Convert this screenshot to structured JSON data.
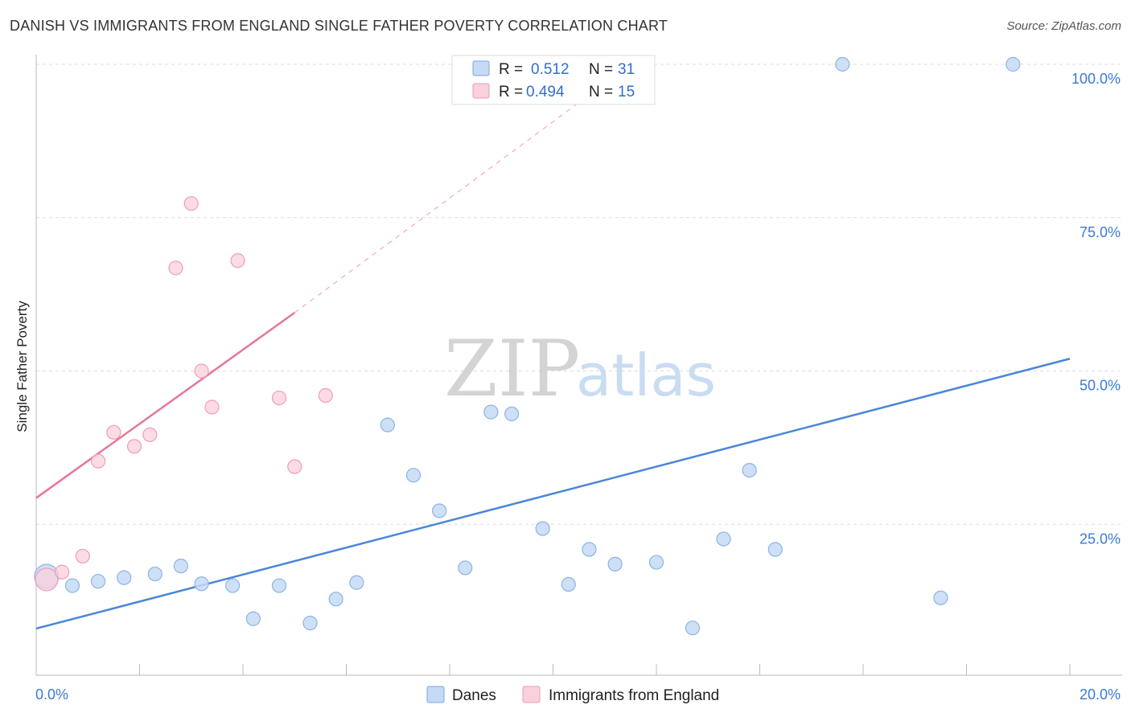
{
  "title": "DANISH VS IMMIGRANTS FROM ENGLAND SINGLE FATHER POVERTY CORRELATION CHART",
  "source": "Source: ZipAtlas.com",
  "watermark": {
    "zip": "ZIP",
    "atlas": "atlas"
  },
  "legend_top": {
    "rows": [
      {
        "r_label": "R =",
        "r_value": "0.512",
        "n_label": "N =",
        "n_value": "31",
        "color": "#a8c8f0"
      },
      {
        "r_label": "R =",
        "r_value": "0.494",
        "n_label": "N =",
        "n_value": "15",
        "color": "#f7b6c8"
      }
    ]
  },
  "legend_bottom": [
    {
      "label": "Danes",
      "color": "#a8c8f0"
    },
    {
      "label": "Immigrants from England",
      "color": "#f7b6c8"
    }
  ],
  "chart_data": {
    "type": "scatter",
    "title": "DANISH VS IMMIGRANTS FROM ENGLAND SINGLE FATHER POVERTY CORRELATION CHART",
    "xlabel": "",
    "ylabel": "Single Father Poverty",
    "xlim": [
      0,
      20
    ],
    "ylim": [
      0,
      100
    ],
    "x_tick_labels": [
      "0.0%",
      "20.0%"
    ],
    "y_tick_labels": [
      "25.0%",
      "50.0%",
      "75.0%",
      "100.0%"
    ],
    "y_ticks": [
      25,
      50,
      75,
      100
    ],
    "grid": true,
    "legend_position": "top-center",
    "series": [
      {
        "name": "Danes",
        "color": "#4a86d8",
        "fill": "#c5daf4",
        "points": [
          [
            0.2,
            16.5
          ],
          [
            0.7,
            15.0
          ],
          [
            1.2,
            15.7
          ],
          [
            1.7,
            16.3
          ],
          [
            2.3,
            16.9
          ],
          [
            2.8,
            18.2
          ],
          [
            3.2,
            15.3
          ],
          [
            3.8,
            15.0
          ],
          [
            4.2,
            9.6
          ],
          [
            4.7,
            15.0
          ],
          [
            5.3,
            8.9
          ],
          [
            5.8,
            12.8
          ],
          [
            6.2,
            15.5
          ],
          [
            6.8,
            41.2
          ],
          [
            7.3,
            33.0
          ],
          [
            7.8,
            27.2
          ],
          [
            8.3,
            17.9
          ],
          [
            8.8,
            43.3
          ],
          [
            9.2,
            43.0
          ],
          [
            9.8,
            24.3
          ],
          [
            10.3,
            15.2
          ],
          [
            10.7,
            20.9
          ],
          [
            11.2,
            18.5
          ],
          [
            12.0,
            18.8
          ],
          [
            12.7,
            8.1
          ],
          [
            13.3,
            22.6
          ],
          [
            13.8,
            33.8
          ],
          [
            14.3,
            20.9
          ],
          [
            15.6,
            100.0
          ],
          [
            17.5,
            13.0
          ],
          [
            18.9,
            100.0
          ]
        ],
        "trend": {
          "x": [
            0,
            20
          ],
          "y": [
            8.0,
            52.0
          ]
        }
      },
      {
        "name": "Immigrants from England",
        "color": "#e8769a",
        "fill": "#f9d0dc",
        "points": [
          [
            0.2,
            16.0
          ],
          [
            0.5,
            17.2
          ],
          [
            0.9,
            19.8
          ],
          [
            1.2,
            35.3
          ],
          [
            1.5,
            40.0
          ],
          [
            1.9,
            37.7
          ],
          [
            2.2,
            39.6
          ],
          [
            2.7,
            66.8
          ],
          [
            3.0,
            77.3
          ],
          [
            3.2,
            50.0
          ],
          [
            3.4,
            44.1
          ],
          [
            3.9,
            68.0
          ],
          [
            4.7,
            45.6
          ],
          [
            5.0,
            34.4
          ],
          [
            5.6,
            46.0
          ]
        ],
        "trend": {
          "x": [
            0,
            5.0
          ],
          "y": [
            29.3,
            59.5
          ]
        },
        "trend_extension": {
          "x": [
            5.0,
            11.5
          ],
          "y": [
            59.5,
            100.0
          ]
        }
      }
    ]
  }
}
